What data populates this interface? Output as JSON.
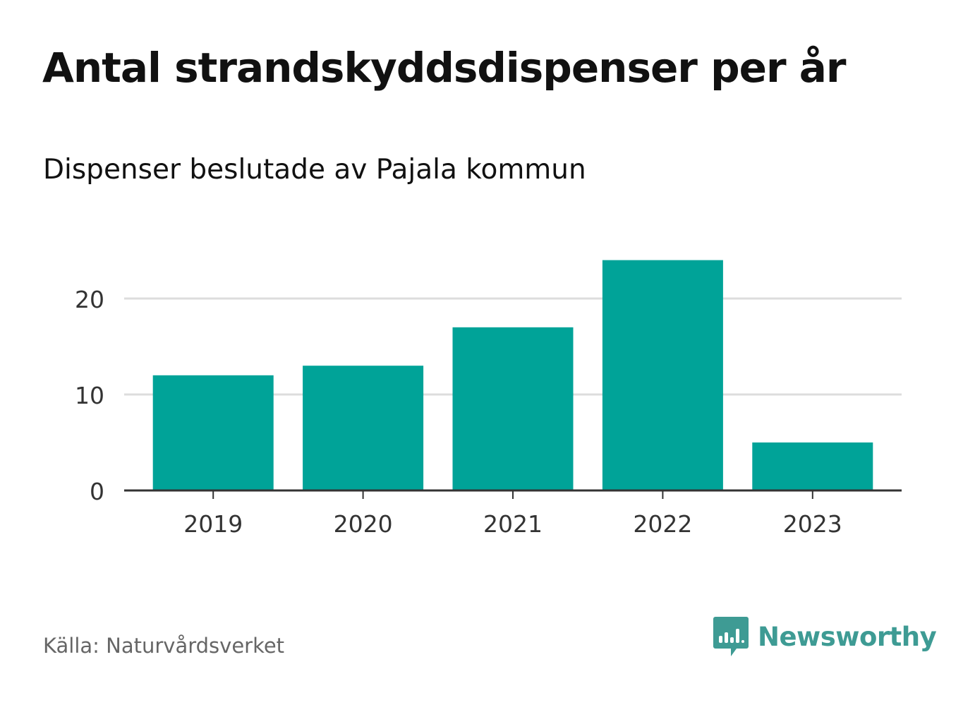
{
  "header": {
    "title": "Antal strandskyddsdispenser per år",
    "subtitle": "Dispenser beslutade av Pajala kommun"
  },
  "footer": {
    "source": "Källa: Naturvårdsverket",
    "brand": "Newsworthy",
    "brand_icon": "bar-chart-speech-bubble-icon"
  },
  "colors": {
    "bar": "#00a398",
    "grid": "#dddddd",
    "axis": "#333333",
    "brand": "#3e9b94"
  },
  "chart_data": {
    "type": "bar",
    "title": "Antal strandskyddsdispenser per år",
    "subtitle": "Dispenser beslutade av Pajala kommun",
    "categories": [
      "2019",
      "2020",
      "2021",
      "2022",
      "2023"
    ],
    "values": [
      12,
      13,
      17,
      24,
      5
    ],
    "xlabel": "",
    "ylabel": "",
    "ylim": [
      0,
      25
    ],
    "yticks": [
      0,
      10,
      20
    ],
    "grid": true,
    "legend": "none"
  }
}
